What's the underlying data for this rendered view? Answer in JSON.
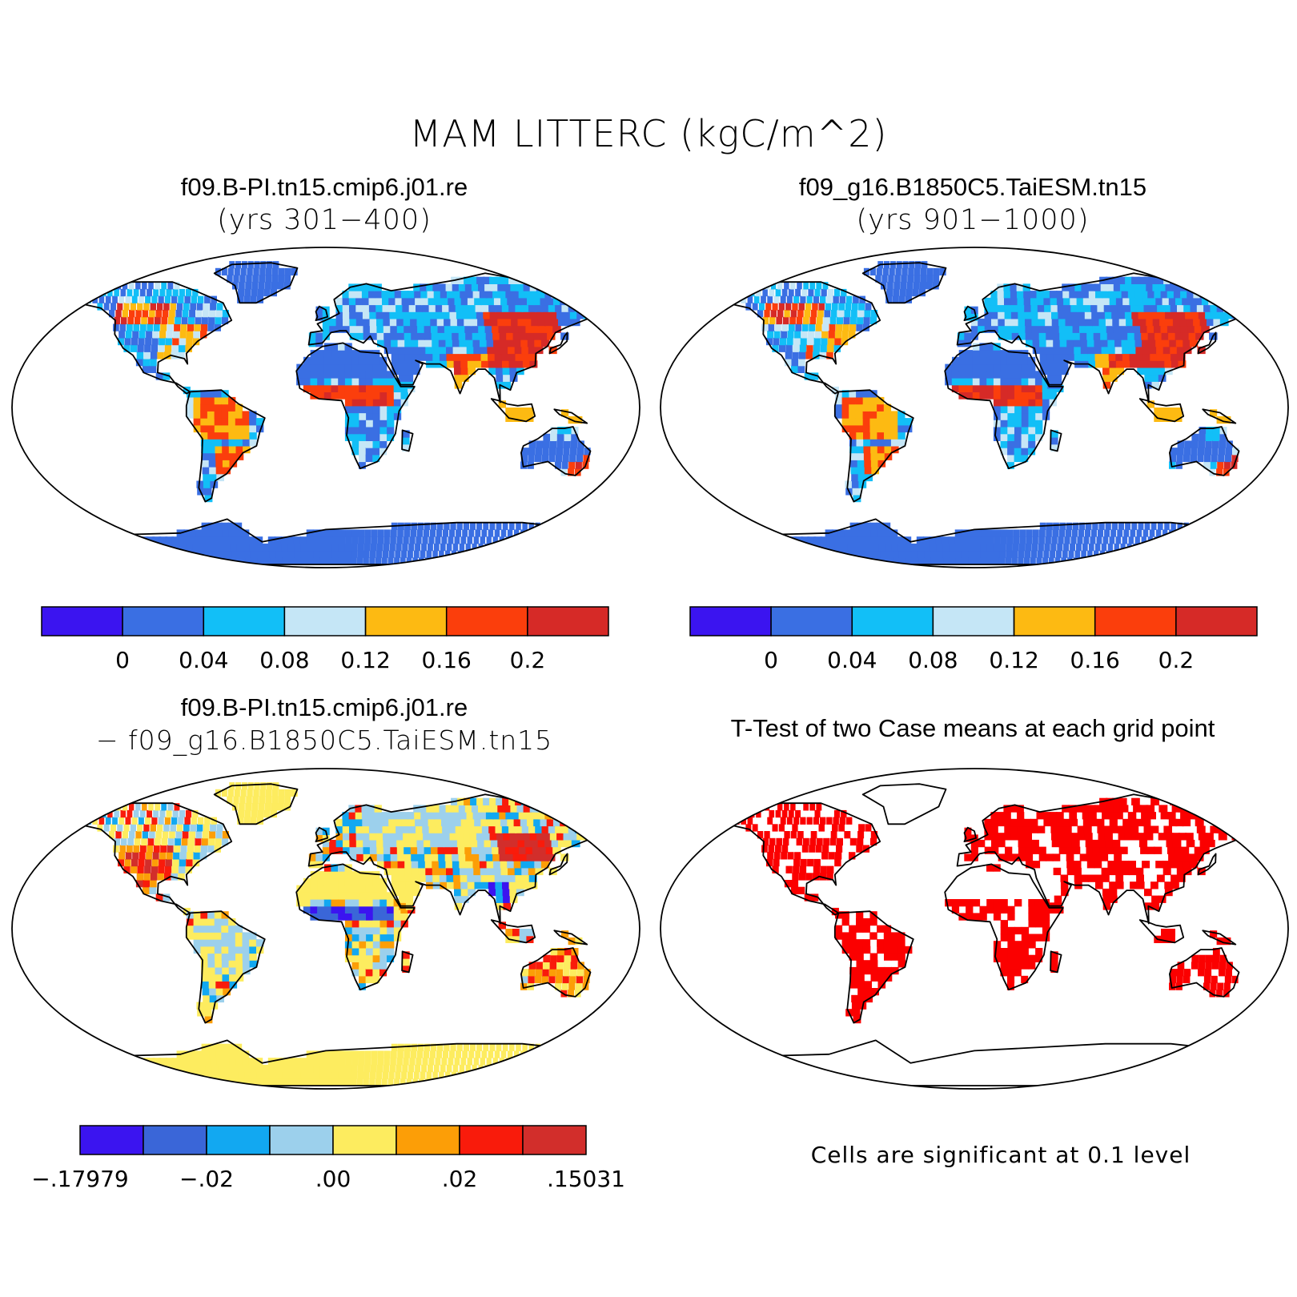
{
  "figure": {
    "title": "MAM LITTERC (kgC/m^2)"
  },
  "panels": [
    {
      "title": "f09.B-PI.tn15.cmip6.j01.re",
      "subtitle": "(yrs 301−400)"
    },
    {
      "title": "f09_g16.B1850C5.TaiESM.tn15",
      "subtitle": "(yrs 901−1000)"
    },
    {
      "title": "f09.B-PI.tn15.cmip6.j01.re",
      "subtitle": "− f09_g16.B1850C5.TaiESM.tn15"
    },
    {
      "title": "T-Test of two Case means at each grid point",
      "note": "Cells are significant at 0.1 level"
    }
  ],
  "colorbars": {
    "mean": {
      "colors": [
        "#3b14f0",
        "#3a6fe3",
        "#12bff7",
        "#c5e6f6",
        "#fdba12",
        "#fb3e0c",
        "#d62a27"
      ],
      "labels": [
        "0",
        "0.04",
        "0.08",
        "0.12",
        "0.16",
        "0.2"
      ]
    },
    "diff": {
      "colors": [
        "#3b14f0",
        "#3a66d8",
        "#12a8f1",
        "#9cd0ec",
        "#fdec5f",
        "#fc9e07",
        "#f91b0b",
        "#d22e2b"
      ],
      "labels": [
        "−.17979",
        "−.02",
        ".00",
        ".02",
        ".15031"
      ]
    }
  },
  "map_colors": {
    "ocean": "#ffffff",
    "coast": "#000000",
    "significant": "#fb0000"
  }
}
